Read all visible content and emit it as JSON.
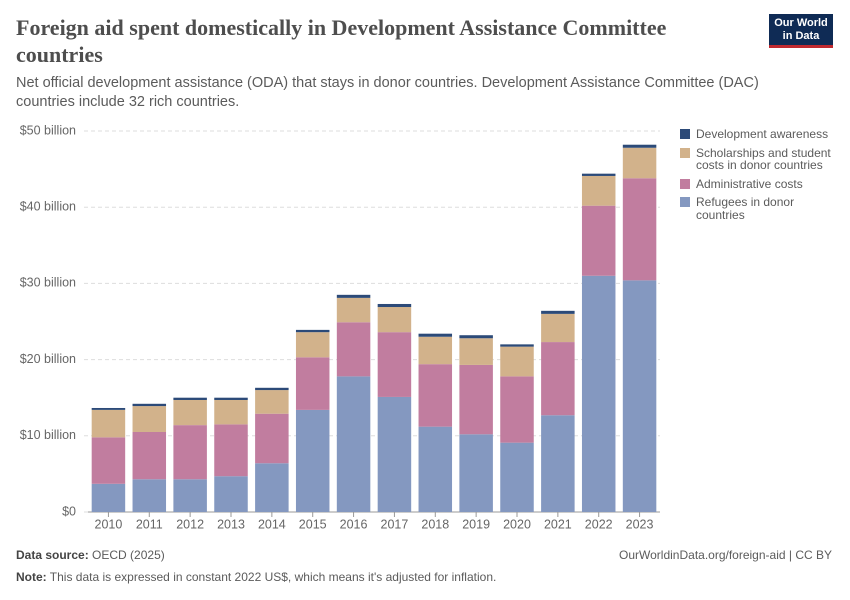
{
  "chart_data": {
    "type": "stacked-bar",
    "title": "Foreign aid spent domestically in Development Assistance Committee countries",
    "subtitle": "Net official development assistance (ODA) that stays in donor countries. Development Assistance Committee (DAC) countries include 32 rich countries.",
    "categories": [
      "2010",
      "2011",
      "2012",
      "2013",
      "2014",
      "2015",
      "2016",
      "2017",
      "2018",
      "2019",
      "2020",
      "2021",
      "2022",
      "2023"
    ],
    "series": [
      {
        "name": "Development awareness",
        "color": "#2c4a78",
        "values": [
          0.25,
          0.3,
          0.3,
          0.3,
          0.3,
          0.3,
          0.4,
          0.4,
          0.4,
          0.4,
          0.3,
          0.4,
          0.3,
          0.4
        ]
      },
      {
        "name": "Scholarships and student costs in donor countries",
        "color": "#d2b28b",
        "values": [
          3.6,
          3.4,
          3.3,
          3.2,
          3.1,
          3.3,
          3.2,
          3.3,
          3.6,
          3.5,
          3.9,
          3.7,
          3.9,
          4.0
        ]
      },
      {
        "name": "Administrative costs",
        "color": "#c17d9f",
        "values": [
          6.1,
          6.2,
          7.1,
          6.8,
          6.5,
          6.9,
          7.1,
          8.5,
          8.2,
          9.1,
          8.7,
          9.6,
          9.2,
          13.4
        ]
      },
      {
        "name": "Refugees in donor countries",
        "color": "#8498c0",
        "values": [
          3.7,
          4.3,
          4.3,
          4.7,
          6.4,
          13.4,
          17.8,
          15.1,
          11.2,
          10.2,
          9.1,
          12.7,
          31.0,
          30.4
        ]
      }
    ],
    "ylim": [
      0,
      50
    ],
    "yticks": [
      {
        "value": 0,
        "label": "$0"
      },
      {
        "value": 10,
        "label": "$10 billion"
      },
      {
        "value": 20,
        "label": "$20 billion"
      },
      {
        "value": 30,
        "label": "$30 billion"
      },
      {
        "value": 40,
        "label": "$40 billion"
      },
      {
        "value": 50,
        "label": "$50 billion"
      }
    ],
    "grid": true
  },
  "logo": "Our World in Data",
  "footer": {
    "source_label": "Data source:",
    "source": "OECD (2025)",
    "url": "OurWorldinData.org/foreign-aid | CC BY",
    "note_label": "Note:",
    "note": "This data is expressed in constant 2022 US$, which means it's adjusted for inflation."
  }
}
